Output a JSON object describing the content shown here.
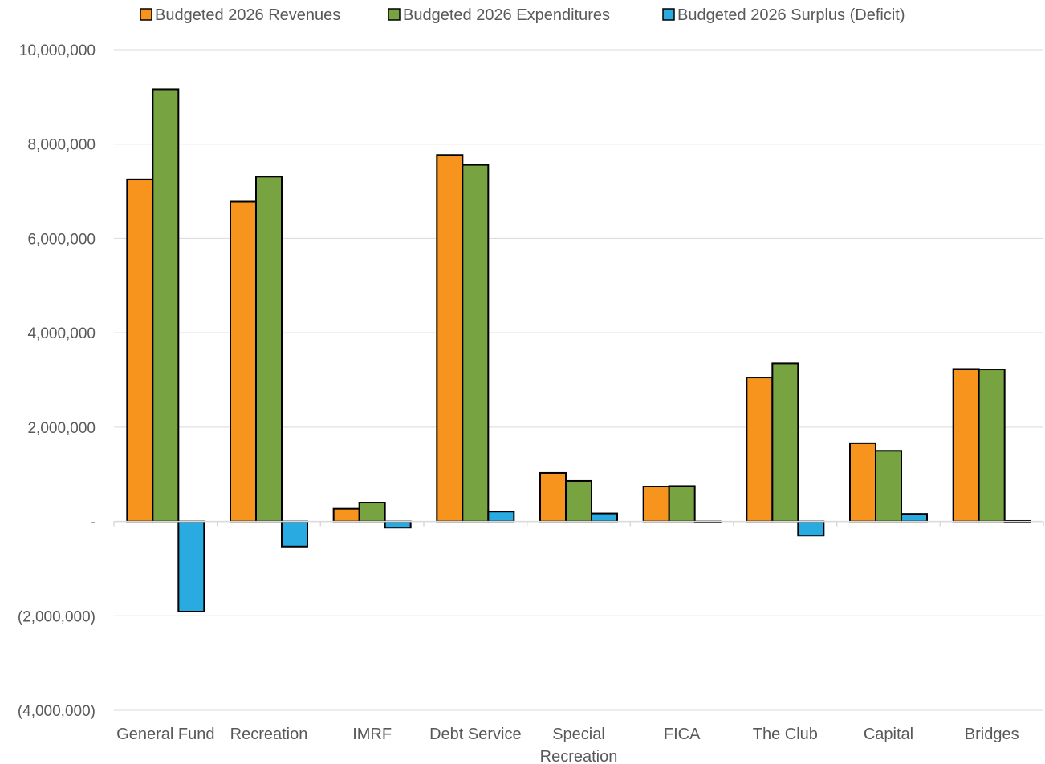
{
  "chart_data": {
    "type": "bar",
    "title": "",
    "xlabel": "",
    "ylabel": "",
    "legend_position": "top",
    "grid": true,
    "ylim": [
      -4000000,
      10000000
    ],
    "y_ticks": [
      {
        "value": 10000000,
        "label": "10,000,000"
      },
      {
        "value": 8000000,
        "label": "8,000,000"
      },
      {
        "value": 6000000,
        "label": "6,000,000"
      },
      {
        "value": 4000000,
        "label": "4,000,000"
      },
      {
        "value": 2000000,
        "label": "2,000,000"
      },
      {
        "value": 0,
        "label": "-"
      },
      {
        "value": -2000000,
        "label": "(2,000,000)"
      },
      {
        "value": -4000000,
        "label": "(4,000,000)"
      }
    ],
    "categories": [
      [
        "General Fund"
      ],
      [
        "Recreation"
      ],
      [
        "IMRF"
      ],
      [
        "Debt Service"
      ],
      [
        "Special",
        "Recreation"
      ],
      [
        "FICA"
      ],
      [
        "The Club"
      ],
      [
        "Capital"
      ],
      [
        "Bridges"
      ]
    ],
    "series": [
      {
        "name": "Budgeted 2026 Revenues",
        "color": "#f7941d",
        "values": [
          7250000,
          6780000,
          270000,
          7770000,
          1030000,
          740000,
          3050000,
          1660000,
          3230000
        ]
      },
      {
        "name": "Budgeted 2026 Expenditures",
        "color": "#77a441",
        "values": [
          9160000,
          7310000,
          400000,
          7560000,
          860000,
          750000,
          3350000,
          1500000,
          3220000
        ]
      },
      {
        "name": "Budgeted 2026 Surplus (Deficit)",
        "color": "#29abe2",
        "values": [
          -1910000,
          -530000,
          -130000,
          210000,
          170000,
          -20000,
          -300000,
          160000,
          10000
        ]
      }
    ]
  }
}
